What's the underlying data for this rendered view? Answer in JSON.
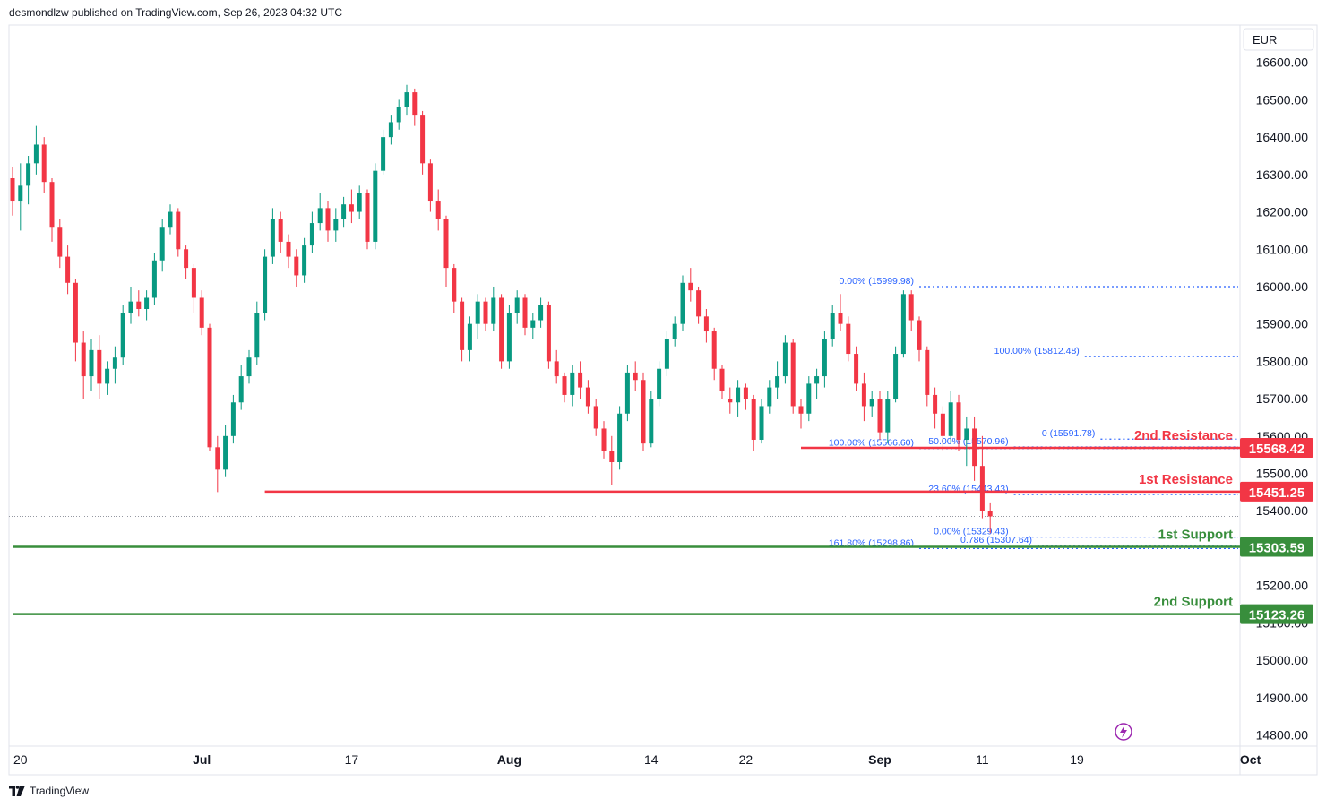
{
  "header": {
    "published_text": "desmondlzw published on TradingView.com, Sep 26, 2023 04:32 UTC"
  },
  "footer": {
    "brand": "TradingView"
  },
  "currency": "EUR",
  "chart_data": {
    "type": "candlestick",
    "y_ticks": [
      "16600.00",
      "16500.00",
      "16400.00",
      "16300.00",
      "16200.00",
      "16100.00",
      "16000.00",
      "15900.00",
      "15800.00",
      "15700.00",
      "15600.00",
      "15500.00",
      "15400.00",
      "15200.00",
      "15100.00",
      "15000.00",
      "14900.00",
      "14800.00"
    ],
    "y_tick_values": [
      16600,
      16500,
      16400,
      16300,
      16200,
      16100,
      16000,
      15900,
      15800,
      15700,
      15600,
      15500,
      15400,
      15200,
      15100,
      15000,
      14900,
      14800
    ],
    "x_ticks": [
      "20",
      "Jul",
      "17",
      "Aug",
      "14",
      "22",
      "Sep",
      "11",
      "19",
      "Oct"
    ],
    "x_tick_index": [
      1,
      24,
      43,
      63,
      81,
      93,
      110,
      123,
      135,
      157
    ],
    "ylim": [
      14770,
      16700
    ],
    "colors": {
      "up": "#089981",
      "down": "#f23645",
      "resistance": "#f23645",
      "support": "#388e3c",
      "fib": "#2962ff"
    },
    "levels": [
      {
        "name": "2nd Resistance",
        "value": 15568.42,
        "label": "15568.42",
        "kind": "resistance",
        "start_index": 100
      },
      {
        "name": "1st Resistance",
        "value": 15451.25,
        "label": "15451.25",
        "kind": "resistance",
        "start_index": 32
      },
      {
        "name": "1st Support",
        "value": 15303.59,
        "label": "15303.59",
        "kind": "support",
        "start_index": 0
      },
      {
        "name": "2nd Support",
        "value": 15123.26,
        "label": "15123.26",
        "kind": "support",
        "start_index": 0
      }
    ],
    "fib_labels": [
      {
        "text": "0.00% (15999.98)",
        "value": 15999.98,
        "start_index": 115
      },
      {
        "text": "100.00% (15812.48)",
        "value": 15812.48,
        "start_index": 136
      },
      {
        "text": "0 (15591.78)",
        "value": 15591.78,
        "start_index": 138
      },
      {
        "text": "50.00% (15570.96)",
        "value": 15570.96,
        "start_index": 127
      },
      {
        "text": "100.00% (15566.60)",
        "value": 15566.6,
        "start_index": 115
      },
      {
        "text": "23.60% (15443.43)",
        "value": 15443.43,
        "start_index": 127
      },
      {
        "text": "0.00% (15329.43)",
        "value": 15329.43,
        "start_index": 127
      },
      {
        "text": "0.786 (15307.64)",
        "value": 15307.64,
        "start_index": 130
      },
      {
        "text": "161.80% (15298.86)",
        "value": 15298.86,
        "start_index": 115
      }
    ],
    "last_price": 15385,
    "candles": [
      [
        16290,
        16320,
        16190,
        16230
      ],
      [
        16230,
        16330,
        16150,
        16270
      ],
      [
        16270,
        16350,
        16220,
        16330
      ],
      [
        16330,
        16430,
        16300,
        16380
      ],
      [
        16380,
        16400,
        16250,
        16280
      ],
      [
        16280,
        16290,
        16120,
        16160
      ],
      [
        16160,
        16180,
        16050,
        16080
      ],
      [
        16080,
        16110,
        15980,
        16010
      ],
      [
        16010,
        16020,
        15800,
        15850
      ],
      [
        15850,
        15880,
        15700,
        15760
      ],
      [
        15760,
        15860,
        15720,
        15830
      ],
      [
        15830,
        15870,
        15700,
        15740
      ],
      [
        15740,
        15800,
        15710,
        15780
      ],
      [
        15780,
        15840,
        15740,
        15810
      ],
      [
        15810,
        15950,
        15790,
        15930
      ],
      [
        15930,
        16000,
        15900,
        15960
      ],
      [
        15960,
        15990,
        15920,
        15940
      ],
      [
        15940,
        15990,
        15910,
        15970
      ],
      [
        15970,
        16090,
        15950,
        16070
      ],
      [
        16070,
        16180,
        16040,
        16160
      ],
      [
        16160,
        16220,
        16140,
        16200
      ],
      [
        16200,
        16210,
        16080,
        16100
      ],
      [
        16100,
        16110,
        16020,
        16050
      ],
      [
        16050,
        16060,
        15930,
        15970
      ],
      [
        15970,
        15990,
        15870,
        15890
      ],
      [
        15890,
        15900,
        15560,
        15570
      ],
      [
        15570,
        15600,
        15450,
        15510
      ],
      [
        15510,
        15630,
        15490,
        15600
      ],
      [
        15600,
        15710,
        15580,
        15690
      ],
      [
        15690,
        15790,
        15670,
        15760
      ],
      [
        15760,
        15830,
        15740,
        15810
      ],
      [
        15810,
        15960,
        15790,
        15930
      ],
      [
        15930,
        16100,
        15910,
        16080
      ],
      [
        16080,
        16210,
        16060,
        16180
      ],
      [
        16180,
        16200,
        16090,
        16120
      ],
      [
        16120,
        16140,
        16050,
        16080
      ],
      [
        16080,
        16100,
        16000,
        16030
      ],
      [
        16030,
        16130,
        16010,
        16110
      ],
      [
        16110,
        16200,
        16090,
        16170
      ],
      [
        16170,
        16250,
        16150,
        16210
      ],
      [
        16210,
        16230,
        16120,
        16150
      ],
      [
        16150,
        16210,
        16120,
        16180
      ],
      [
        16180,
        16240,
        16160,
        16220
      ],
      [
        16220,
        16260,
        16170,
        16200
      ],
      [
        16200,
        16270,
        16180,
        16250
      ],
      [
        16250,
        16260,
        16100,
        16120
      ],
      [
        16120,
        16330,
        16100,
        16310
      ],
      [
        16310,
        16420,
        16300,
        16400
      ],
      [
        16400,
        16460,
        16380,
        16440
      ],
      [
        16440,
        16500,
        16420,
        16480
      ],
      [
        16480,
        16540,
        16460,
        16520
      ],
      [
        16520,
        16530,
        16430,
        16460
      ],
      [
        16460,
        16470,
        16300,
        16330
      ],
      [
        16330,
        16340,
        16200,
        16230
      ],
      [
        16230,
        16260,
        16150,
        16180
      ],
      [
        16180,
        16190,
        16000,
        16050
      ],
      [
        16050,
        16060,
        15930,
        15960
      ],
      [
        15960,
        15970,
        15800,
        15830
      ],
      [
        15830,
        15920,
        15800,
        15900
      ],
      [
        15900,
        15980,
        15860,
        15960
      ],
      [
        15960,
        15970,
        15880,
        15900
      ],
      [
        15900,
        16000,
        15880,
        15970
      ],
      [
        15970,
        15980,
        15780,
        15800
      ],
      [
        15800,
        15950,
        15780,
        15930
      ],
      [
        15930,
        15990,
        15900,
        15970
      ],
      [
        15970,
        15980,
        15870,
        15890
      ],
      [
        15890,
        15930,
        15860,
        15910
      ],
      [
        15910,
        15970,
        15890,
        15950
      ],
      [
        15950,
        15960,
        15780,
        15800
      ],
      [
        15800,
        15830,
        15740,
        15760
      ],
      [
        15760,
        15770,
        15690,
        15710
      ],
      [
        15710,
        15790,
        15680,
        15770
      ],
      [
        15770,
        15800,
        15700,
        15730
      ],
      [
        15730,
        15750,
        15660,
        15680
      ],
      [
        15680,
        15700,
        15600,
        15620
      ],
      [
        15620,
        15640,
        15540,
        15560
      ],
      [
        15560,
        15600,
        15470,
        15530
      ],
      [
        15530,
        15680,
        15510,
        15660
      ],
      [
        15660,
        15790,
        15640,
        15770
      ],
      [
        15770,
        15800,
        15720,
        15750
      ],
      [
        15750,
        15770,
        15560,
        15580
      ],
      [
        15580,
        15720,
        15570,
        15700
      ],
      [
        15700,
        15800,
        15680,
        15780
      ],
      [
        15780,
        15880,
        15760,
        15860
      ],
      [
        15860,
        15920,
        15840,
        15900
      ],
      [
        15900,
        16030,
        15880,
        16010
      ],
      [
        16010,
        16050,
        15960,
        15990
      ],
      [
        15990,
        16000,
        15900,
        15920
      ],
      [
        15920,
        15940,
        15850,
        15880
      ],
      [
        15880,
        15890,
        15750,
        15780
      ],
      [
        15780,
        15790,
        15700,
        15720
      ],
      [
        15700,
        15730,
        15660,
        15690
      ],
      [
        15690,
        15750,
        15650,
        15730
      ],
      [
        15730,
        15740,
        15670,
        15700
      ],
      [
        15700,
        15710,
        15560,
        15590
      ],
      [
        15590,
        15700,
        15580,
        15680
      ],
      [
        15680,
        15750,
        15660,
        15730
      ],
      [
        15730,
        15800,
        15700,
        15760
      ],
      [
        15760,
        15870,
        15740,
        15850
      ],
      [
        15850,
        15860,
        15660,
        15680
      ],
      [
        15680,
        15700,
        15620,
        15660
      ],
      [
        15660,
        15760,
        15640,
        15740
      ],
      [
        15740,
        15780,
        15700,
        15760
      ],
      [
        15760,
        15880,
        15730,
        15860
      ],
      [
        15860,
        15950,
        15840,
        15930
      ],
      [
        15930,
        15980,
        15880,
        15900
      ],
      [
        15900,
        15920,
        15800,
        15820
      ],
      [
        15820,
        15840,
        15720,
        15740
      ],
      [
        15740,
        15770,
        15640,
        15680
      ],
      [
        15680,
        15720,
        15650,
        15700
      ],
      [
        15700,
        15720,
        15590,
        15610
      ],
      [
        15610,
        15720,
        15580,
        15700
      ],
      [
        15700,
        15840,
        15690,
        15820
      ],
      [
        15820,
        15990,
        15810,
        15980
      ],
      [
        15980,
        15990,
        15880,
        15910
      ],
      [
        15910,
        15920,
        15800,
        15830
      ],
      [
        15830,
        15840,
        15680,
        15710
      ],
      [
        15710,
        15730,
        15620,
        15660
      ],
      [
        15660,
        15680,
        15560,
        15600
      ],
      [
        15600,
        15720,
        15580,
        15690
      ],
      [
        15690,
        15710,
        15560,
        15590
      ],
      [
        15590,
        15650,
        15520,
        15620
      ],
      [
        15620,
        15650,
        15480,
        15520
      ],
      [
        15520,
        15600,
        15380,
        15400
      ],
      [
        15400,
        15420,
        15340,
        15385
      ]
    ]
  }
}
